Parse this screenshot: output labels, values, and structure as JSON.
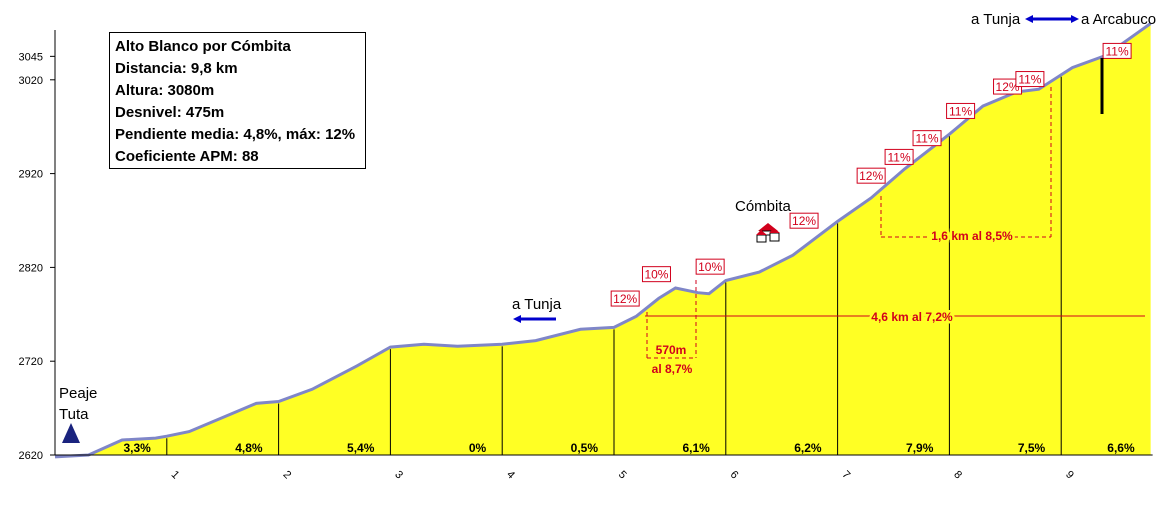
{
  "info_box": {
    "title": "Alto Blanco por Cómbita",
    "distance": "Distancia: 9,8 km",
    "altitude": "Altura: 3080m",
    "elevation_gain": "Desnivel: 475m",
    "gradient": "Pendiente media: 4,8%, máx: 12%",
    "apm": "Coeficiente APM: 88"
  },
  "labels": {
    "start_place_line1": "Peaje",
    "start_place_line2": "Tuta",
    "town": "Cómbita",
    "side_road": "a Tunja",
    "top_left": "a Tunja",
    "top_right": "a Arcabuco"
  },
  "annotations": {
    "climb_570": "570m",
    "climb_570_grade": "al 8,7%",
    "climb_46": "4,6 km al 7,2%",
    "climb_16": "1,6 km al 8,5%"
  },
  "colors": {
    "fill": "#ffff24",
    "outline": "#7f86c8",
    "red": "#d1001c",
    "blue": "#0000cc"
  },
  "chart_data": {
    "type": "area",
    "title": "Alto Blanco por Cómbita",
    "xlabel": "",
    "ylabel": "",
    "xlim": [
      0,
      9.8
    ],
    "ylim": [
      2620,
      3080
    ],
    "y_ticks": [
      2620,
      2720,
      2820,
      2920,
      3020,
      3045
    ],
    "x_ticks": [
      1,
      2,
      3,
      4,
      5,
      6,
      7,
      8,
      9
    ],
    "profile": [
      [
        0.0,
        2618
      ],
      [
        0.3,
        2620
      ],
      [
        0.6,
        2636
      ],
      [
        0.9,
        2638
      ],
      [
        1.0,
        2640
      ],
      [
        1.2,
        2645
      ],
      [
        1.5,
        2660
      ],
      [
        1.8,
        2675
      ],
      [
        2.0,
        2677
      ],
      [
        2.3,
        2690
      ],
      [
        2.7,
        2715
      ],
      [
        3.0,
        2735
      ],
      [
        3.3,
        2738
      ],
      [
        3.6,
        2736
      ],
      [
        4.0,
        2738
      ],
      [
        4.3,
        2742
      ],
      [
        4.7,
        2754
      ],
      [
        5.0,
        2756
      ],
      [
        5.2,
        2768
      ],
      [
        5.4,
        2787
      ],
      [
        5.55,
        2798
      ],
      [
        5.75,
        2793
      ],
      [
        5.85,
        2792
      ],
      [
        6.0,
        2806
      ],
      [
        6.3,
        2815
      ],
      [
        6.6,
        2833
      ],
      [
        7.0,
        2869
      ],
      [
        7.3,
        2894
      ],
      [
        7.6,
        2925
      ],
      [
        8.0,
        2962
      ],
      [
        8.3,
        2992
      ],
      [
        8.6,
        3007
      ],
      [
        8.8,
        3010
      ],
      [
        9.1,
        3033
      ],
      [
        9.4,
        3046
      ],
      [
        9.8,
        3080
      ]
    ],
    "segment_gradients": [
      "3,3%",
      "4,8%",
      "5,4%",
      "0%",
      "0,5%",
      "6,1%",
      "6,2%",
      "7,9%",
      "7,5%",
      "6,6%"
    ],
    "gradient_markers": [
      {
        "label": "12%",
        "x": 5.1,
        "y": 2774
      },
      {
        "label": "10%",
        "x": 5.38,
        "y": 2800
      },
      {
        "label": "10%",
        "x": 5.86,
        "y": 2808
      },
      {
        "label": "12%",
        "x": 6.7,
        "y": 2857
      },
      {
        "label": "12%",
        "x": 7.3,
        "y": 2905
      },
      {
        "label": "11%",
        "x": 7.55,
        "y": 2925
      },
      {
        "label": "11%",
        "x": 7.8,
        "y": 2945
      },
      {
        "label": "11%",
        "x": 8.1,
        "y": 2974
      },
      {
        "label": "12%",
        "x": 8.52,
        "y": 3000
      },
      {
        "label": "11%",
        "x": 8.72,
        "y": 3008
      },
      {
        "label": "11%",
        "x": 9.5,
        "y": 3038
      }
    ]
  }
}
